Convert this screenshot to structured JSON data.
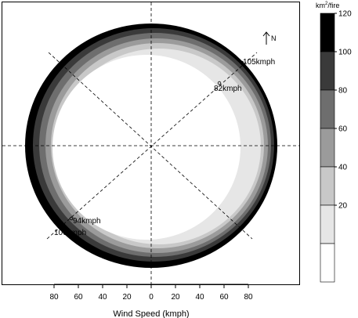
{
  "chart_data": {
    "type": "polar-contour",
    "xlabel": "Wind Speed (kmph)",
    "x_ticks": [
      80,
      60,
      40,
      20,
      0,
      20,
      40,
      60,
      80
    ],
    "north_label": "N",
    "legend": {
      "title_prefix": "km",
      "title_sup": "2",
      "title_suffix": "/fire",
      "breaks": [
        120,
        100,
        80,
        60,
        40,
        20
      ],
      "colors": [
        "#000000",
        "#3a3a3a",
        "#6e6e6e",
        "#9b9b9b",
        "#c8c8c8",
        "#e6e6e6",
        "#ffffff"
      ]
    },
    "annotations": [
      {
        "label": "105kmph",
        "direction_deg": 45,
        "speed": 105
      },
      {
        "label": "82kmph",
        "direction_deg": 45,
        "speed": 82
      },
      {
        "label": "94kmph",
        "direction_deg": 225,
        "speed": 94
      },
      {
        "label": "106kmph",
        "direction_deg": 225,
        "speed": 106
      }
    ]
  }
}
